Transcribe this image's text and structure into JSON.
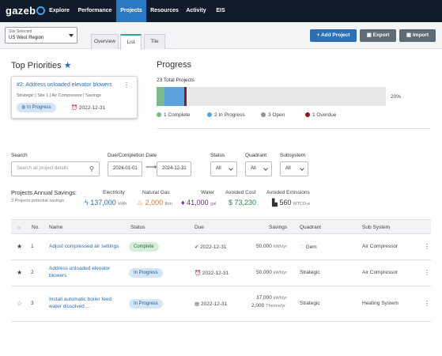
{
  "nav": {
    "logo": "gazeb",
    "items": [
      "Explore",
      "Performance",
      "Projects",
      "Resources",
      "Activity",
      "EIS"
    ],
    "active": "Projects"
  },
  "site": {
    "label": "Site Selected",
    "value": "US West Region"
  },
  "tabs": [
    "Overview",
    "List",
    "Tile"
  ],
  "toolbar": {
    "add": "+ Add Project",
    "export": "Export",
    "import": "Import"
  },
  "priorities": {
    "heading": "Top Priorities",
    "card": {
      "title": "#2: Address unloaded elevator blowers",
      "meta": "Strategic | Site 1 | Air Compressor | Savings",
      "status": "In Progress",
      "due": "2022-12-31"
    }
  },
  "progress": {
    "heading": "Progress",
    "total": "23 Total Projects",
    "percent": "20%",
    "segments": [
      {
        "name": "Complete",
        "count": 1,
        "color": "#7cb98a"
      },
      {
        "name": "In Progress",
        "count": 2,
        "color": "#5aa3df"
      },
      {
        "name": "Open",
        "count": 3,
        "color": "#e8e8e8"
      },
      {
        "name": "Overdue",
        "count": 1,
        "color": "#8b1a1a"
      }
    ],
    "legend": [
      "1 Complete",
      "2 In Progress",
      "3 Open",
      "1 Overdue"
    ]
  },
  "filters": {
    "search_label": "Search",
    "search_placeholder": "Search all project details",
    "due_label": "Due/Completion Date",
    "date_from": "2024-01-01",
    "date_to": "2024-12-31",
    "status_label": "Status",
    "status_value": "All",
    "quadrant_label": "Quadrant",
    "quadrant_value": "All",
    "subsystem_label": "Subsystem",
    "subsystem_value": "All"
  },
  "savings": {
    "heading": "Projects Annual Savings:",
    "sub": "3 Projects potential savings",
    "electricity": {
      "label": "Electricity",
      "value": "137,000",
      "unit": "kWh",
      "color": "#2d6fb5"
    },
    "gas": {
      "label": "Natural Gas",
      "value": "2,000",
      "unit": "thm",
      "color": "#e07a2c"
    },
    "water": {
      "label": "Water",
      "value": "41,000",
      "unit": "gal",
      "color": "#6b2c91"
    },
    "cost": {
      "label": "Avoided Cost",
      "value": "$ 73,230",
      "color": "#2e8a4a"
    },
    "emissions": {
      "label": "Avoided Emissions",
      "value": "560",
      "unit": "MTCO₂e",
      "color": "#333333"
    }
  },
  "table": {
    "headers": [
      "No.",
      "Name",
      "Status",
      "Due",
      "Savings",
      "Quadrant",
      "Sub System"
    ],
    "rows": [
      {
        "no": "1",
        "name": "Adjust compressed air settings",
        "status": "Complete",
        "due": "2022-12-31",
        "savings1": "50,000",
        "unit1": "kWh/yr",
        "savings2": "",
        "unit2": "",
        "quadrant": "Gem",
        "subsystem": "Air Compressor"
      },
      {
        "no": "2",
        "name": "Address unloaded elevator blowers",
        "status": "In Progress",
        "due": "2022-12-31",
        "savings1": "50,000",
        "unit1": "kWh/yr",
        "savings2": "",
        "unit2": "",
        "quadrant": "Strategic",
        "subsystem": "Air Compressor"
      },
      {
        "no": "3",
        "name": "Install automatic boiler feed water dissolved ...",
        "status": "In Progress",
        "due": "2022-12-31",
        "savings1": "37,000",
        "unit1": "kWh/yr",
        "savings2": "2,000",
        "unit2": "Therms/yr",
        "quadrant": "Strategic",
        "subsystem": "Heating System"
      }
    ]
  }
}
